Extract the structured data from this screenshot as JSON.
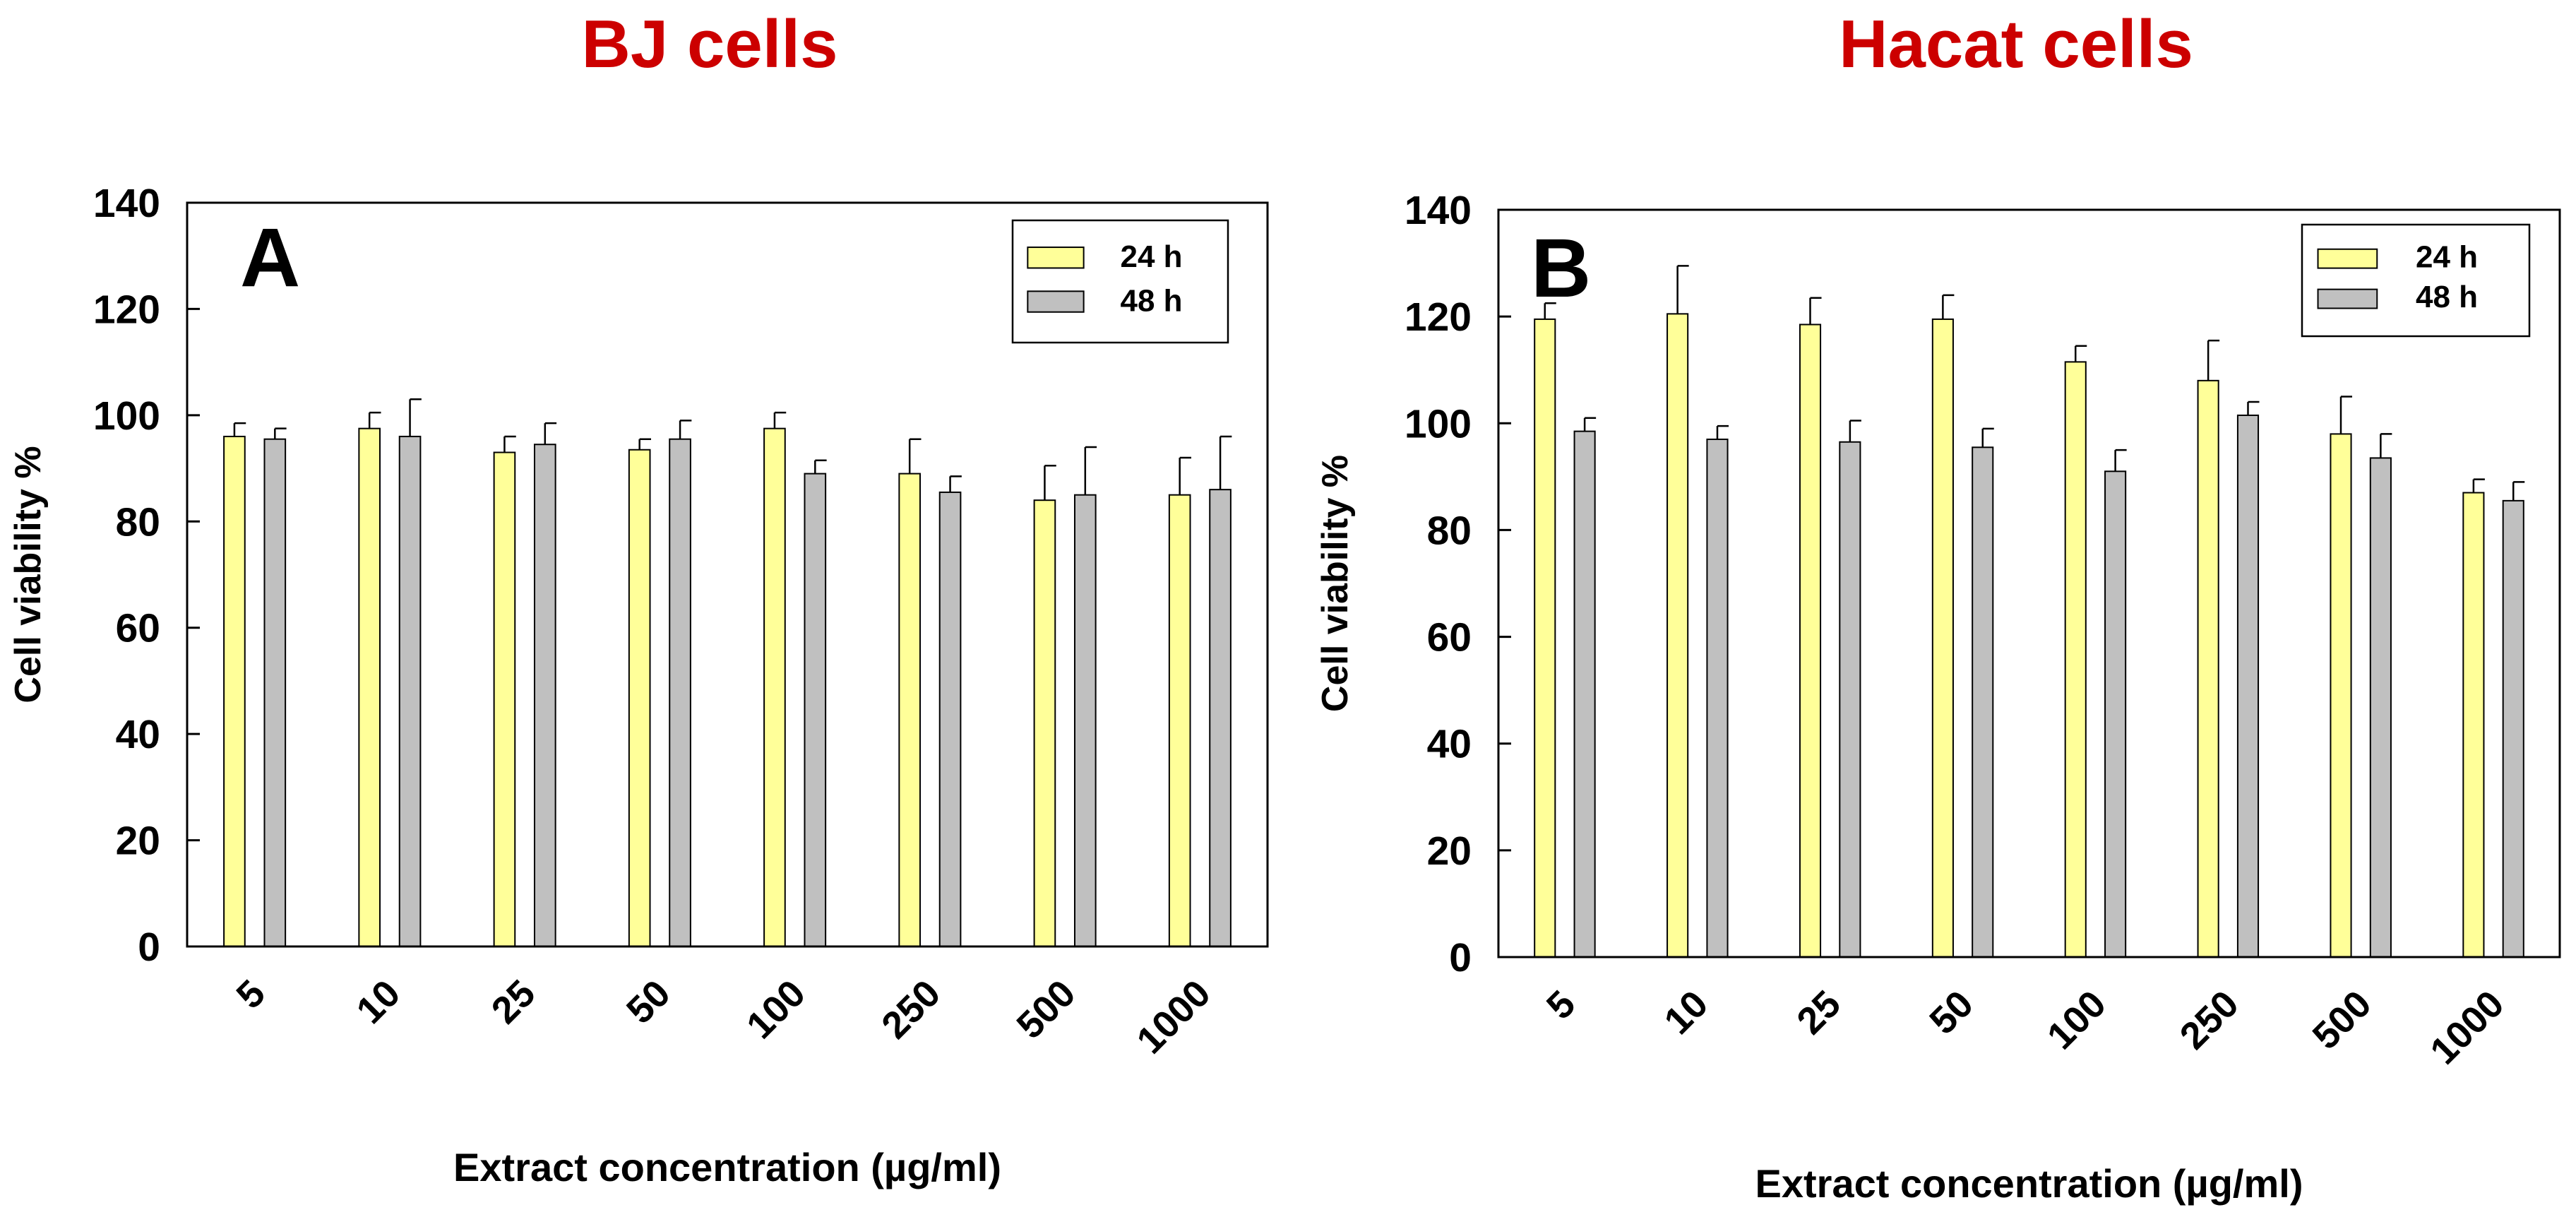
{
  "chart_data": [
    {
      "type": "bar",
      "title": "BJ cells",
      "panel_label": "A",
      "xlabel": "Extract concentration (µg/ml)",
      "ylabel": "Cell viability %",
      "ylim": [
        0,
        140
      ],
      "yticks": [
        0,
        20,
        40,
        60,
        80,
        100,
        120,
        140
      ],
      "grid": false,
      "legend_position": "top-right",
      "categories": [
        "5",
        "10",
        "25",
        "50",
        "100",
        "250",
        "500",
        "1000"
      ],
      "series": [
        {
          "name": "24 h",
          "color": "#ffff99",
          "values": [
            96,
            97.5,
            93,
            93.5,
            97.5,
            89,
            84,
            85
          ],
          "errors": [
            2.5,
            3,
            3,
            2,
            3,
            6.5,
            6.5,
            7
          ]
        },
        {
          "name": "48 h",
          "color": "#c0c0c0",
          "values": [
            95.5,
            96,
            94.5,
            95.5,
            89,
            85.5,
            85,
            86
          ],
          "errors": [
            2,
            7,
            4,
            3.5,
            2.5,
            3,
            9,
            10
          ]
        }
      ]
    },
    {
      "type": "bar",
      "title": "Hacat cells",
      "panel_label": "B",
      "xlabel": "Extract concentration (µg/ml)",
      "ylabel": "Cell viability %",
      "ylim": [
        0,
        140
      ],
      "yticks": [
        0,
        20,
        40,
        60,
        80,
        100,
        120,
        140
      ],
      "grid": false,
      "legend_position": "top-right",
      "categories": [
        "5",
        "10",
        "25",
        "50",
        "100",
        "250",
        "500",
        "1000"
      ],
      "series": [
        {
          "name": "24 h",
          "color": "#ffff99",
          "values": [
            119.5,
            120.5,
            118.5,
            119.5,
            111.5,
            108,
            98,
            87
          ],
          "errors": [
            3,
            9,
            5,
            4.5,
            3,
            7.5,
            7,
            2.5
          ]
        },
        {
          "name": "48 h",
          "color": "#c0c0c0",
          "values": [
            98.5,
            97,
            96.5,
            95.5,
            91,
            101.5,
            93.5,
            85.5
          ],
          "errors": [
            2.5,
            2.5,
            4,
            3.5,
            4,
            2.5,
            4.5,
            3.5
          ]
        }
      ]
    }
  ],
  "colors": {
    "title": "#cc0000",
    "axis": "#000000"
  }
}
